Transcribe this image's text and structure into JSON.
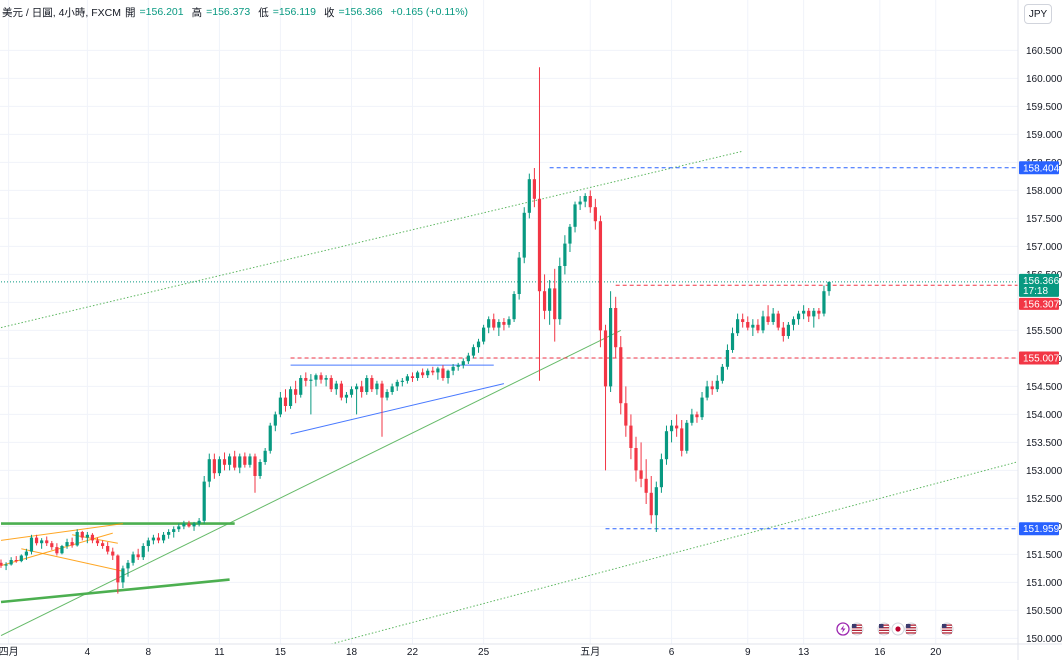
{
  "header": {
    "symbol": "美元 / 日圓, 4小時, FXCM",
    "open_label": "開",
    "open_value": "=156.201",
    "high_label": "高",
    "high_value": "=156.373",
    "low_label": "低",
    "low_value": "=156.119",
    "close_label": "收",
    "close_value": "=156.366",
    "change": "+0.165 (+0.11%)"
  },
  "currency_button": "JPY",
  "colors": {
    "up": "#089981",
    "down": "#f23645",
    "blue_tag": "#2962ff",
    "red_tag": "#f23645",
    "green_tag": "#089981",
    "channel": "#4caf50",
    "orange": "#ff9800",
    "blue_line": "#2962ff"
  },
  "price_tags": {
    "high_tag": "158.404",
    "current_price": "156.366",
    "countdown": "17:18",
    "prev_close": "156.307",
    "level_mid": "155.007",
    "low_tag": "151.959"
  },
  "event_icons": [
    "flash-icon",
    "us-flag-icon",
    "us-flag-icon",
    "jp-flag-icon",
    "us-flag-icon",
    "us-flag-icon"
  ],
  "chart_data": {
    "type": "candlestick",
    "ylim": [
      149.9,
      160.9
    ],
    "y_ticks": [
      "160.500",
      "160.000",
      "159.500",
      "159.000",
      "158.500",
      "158.000",
      "157.500",
      "157.000",
      "156.500",
      "156.000",
      "155.500",
      "155.000",
      "154.500",
      "154.000",
      "153.500",
      "153.000",
      "152.500",
      "152.000",
      "151.500",
      "151.000",
      "150.500",
      "150.000"
    ],
    "x_ticks": [
      {
        "label": "四月",
        "i": 1.5
      },
      {
        "label": "4",
        "i": 17
      },
      {
        "label": "8",
        "i": 29
      },
      {
        "label": "11",
        "i": 43
      },
      {
        "label": "15",
        "i": 55
      },
      {
        "label": "18",
        "i": 69
      },
      {
        "label": "22",
        "i": 81
      },
      {
        "label": "25",
        "i": 95
      },
      {
        "label": "五月",
        "i": 116
      },
      {
        "label": "6",
        "i": 132
      },
      {
        "label": "9",
        "i": 147
      },
      {
        "label": "13",
        "i": 158
      },
      {
        "label": "16",
        "i": 173
      },
      {
        "label": "20",
        "i": 184
      }
    ],
    "candles": [
      [
        151.35,
        151.41,
        151.26,
        151.3
      ],
      [
        151.3,
        151.36,
        151.22,
        151.32
      ],
      [
        151.32,
        151.45,
        151.3,
        151.4
      ],
      [
        151.4,
        151.47,
        151.35,
        151.38
      ],
      [
        151.38,
        151.5,
        151.36,
        151.48
      ],
      [
        151.48,
        151.6,
        151.4,
        151.55
      ],
      [
        151.55,
        151.85,
        151.5,
        151.8
      ],
      [
        151.8,
        151.85,
        151.66,
        151.7
      ],
      [
        151.7,
        151.79,
        151.6,
        151.75
      ],
      [
        151.75,
        151.82,
        151.65,
        151.7
      ],
      [
        151.7,
        151.74,
        151.58,
        151.63
      ],
      [
        151.63,
        151.7,
        151.48,
        151.52
      ],
      [
        151.52,
        151.67,
        151.5,
        151.65
      ],
      [
        151.65,
        151.78,
        151.6,
        151.72
      ],
      [
        151.72,
        151.8,
        151.62,
        151.66
      ],
      [
        151.66,
        151.95,
        151.64,
        151.9
      ],
      [
        151.9,
        151.92,
        151.75,
        151.8
      ],
      [
        151.8,
        151.9,
        151.7,
        151.85
      ],
      [
        151.85,
        151.88,
        151.7,
        151.75
      ],
      [
        151.75,
        151.8,
        151.65,
        151.7
      ],
      [
        151.7,
        151.75,
        151.6,
        151.65
      ],
      [
        151.65,
        151.72,
        151.5,
        151.55
      ],
      [
        151.55,
        151.62,
        151.4,
        151.48
      ],
      [
        151.48,
        151.5,
        150.8,
        151.0
      ],
      [
        151.0,
        151.3,
        150.9,
        151.25
      ],
      [
        151.25,
        151.4,
        151.1,
        151.35
      ],
      [
        151.35,
        151.55,
        151.3,
        151.5
      ],
      [
        151.5,
        151.6,
        151.4,
        151.45
      ],
      [
        151.45,
        151.7,
        151.4,
        151.65
      ],
      [
        151.65,
        151.8,
        151.55,
        151.75
      ],
      [
        151.75,
        151.85,
        151.68,
        151.8
      ],
      [
        151.8,
        151.88,
        151.7,
        151.75
      ],
      [
        151.75,
        151.9,
        151.7,
        151.85
      ],
      [
        151.85,
        151.95,
        151.78,
        151.9
      ],
      [
        151.9,
        152.0,
        151.8,
        151.95
      ],
      [
        151.95,
        152.05,
        151.9,
        152.0
      ],
      [
        152.0,
        152.1,
        151.95,
        152.05
      ],
      [
        152.05,
        152.1,
        151.98,
        152.0
      ],
      [
        152.0,
        152.08,
        151.92,
        152.05
      ],
      [
        152.05,
        152.15,
        152.0,
        152.1
      ],
      [
        152.1,
        152.9,
        152.05,
        152.8
      ],
      [
        152.8,
        153.3,
        152.7,
        153.2
      ],
      [
        153.2,
        153.3,
        152.85,
        152.95
      ],
      [
        152.95,
        153.25,
        152.9,
        153.2
      ],
      [
        153.2,
        153.32,
        153.0,
        153.1
      ],
      [
        153.1,
        153.3,
        153.0,
        153.25
      ],
      [
        153.25,
        153.35,
        153.0,
        153.05
      ],
      [
        153.05,
        153.3,
        152.95,
        153.25
      ],
      [
        153.25,
        153.32,
        153.05,
        153.1
      ],
      [
        153.1,
        153.3,
        153.05,
        153.25
      ],
      [
        153.25,
        153.3,
        152.6,
        152.9
      ],
      [
        152.9,
        153.2,
        152.85,
        153.15
      ],
      [
        153.15,
        153.4,
        153.1,
        153.35
      ],
      [
        153.35,
        153.85,
        153.3,
        153.8
      ],
      [
        153.8,
        154.05,
        153.7,
        154.0
      ],
      [
        154.0,
        154.4,
        153.95,
        154.3
      ],
      [
        154.3,
        154.45,
        154.05,
        154.15
      ],
      [
        154.15,
        154.5,
        154.1,
        154.45
      ],
      [
        154.45,
        154.6,
        154.2,
        154.35
      ],
      [
        154.35,
        154.7,
        154.3,
        154.65
      ],
      [
        154.65,
        154.75,
        154.5,
        154.6
      ],
      [
        154.6,
        154.72,
        154.0,
        154.62
      ],
      [
        154.62,
        154.73,
        154.5,
        154.7
      ],
      [
        154.7,
        154.75,
        154.55,
        154.62
      ],
      [
        154.62,
        154.7,
        154.5,
        154.65
      ],
      [
        154.65,
        154.7,
        154.4,
        154.45
      ],
      [
        154.45,
        154.6,
        154.35,
        154.55
      ],
      [
        154.55,
        154.6,
        154.25,
        154.3
      ],
      [
        154.3,
        154.4,
        154.2,
        154.35
      ],
      [
        154.35,
        154.5,
        154.3,
        154.45
      ],
      [
        154.45,
        154.55,
        154.0,
        154.5
      ],
      [
        154.5,
        154.6,
        154.3,
        154.4
      ],
      [
        154.4,
        154.7,
        154.35,
        154.65
      ],
      [
        154.65,
        154.7,
        154.4,
        154.45
      ],
      [
        154.45,
        154.6,
        154.35,
        154.55
      ],
      [
        154.55,
        154.6,
        153.6,
        154.3
      ],
      [
        154.3,
        154.45,
        154.25,
        154.4
      ],
      [
        154.4,
        154.55,
        154.35,
        154.5
      ],
      [
        154.5,
        154.62,
        154.42,
        154.58
      ],
      [
        154.58,
        154.65,
        154.5,
        154.6
      ],
      [
        154.6,
        154.72,
        154.55,
        154.68
      ],
      [
        154.68,
        154.75,
        154.58,
        154.65
      ],
      [
        154.65,
        154.78,
        154.6,
        154.75
      ],
      [
        154.75,
        154.82,
        154.65,
        154.7
      ],
      [
        154.7,
        154.82,
        154.65,
        154.78
      ],
      [
        154.78,
        154.85,
        154.7,
        154.75
      ],
      [
        154.75,
        154.85,
        154.62,
        154.82
      ],
      [
        154.82,
        154.88,
        154.6,
        154.65
      ],
      [
        154.65,
        154.8,
        154.55,
        154.78
      ],
      [
        154.78,
        154.9,
        154.7,
        154.85
      ],
      [
        154.85,
        154.92,
        154.78,
        154.88
      ],
      [
        154.88,
        155.0,
        154.82,
        154.95
      ],
      [
        154.95,
        155.1,
        154.9,
        155.05
      ],
      [
        155.05,
        155.25,
        155.0,
        155.2
      ],
      [
        155.2,
        155.35,
        155.1,
        155.3
      ],
      [
        155.3,
        155.6,
        155.25,
        155.55
      ],
      [
        155.55,
        155.75,
        155.45,
        155.7
      ],
      [
        155.7,
        155.8,
        155.5,
        155.55
      ],
      [
        155.55,
        155.7,
        155.4,
        155.65
      ],
      [
        155.65,
        155.72,
        155.5,
        155.6
      ],
      [
        155.6,
        155.75,
        155.55,
        155.7
      ],
      [
        155.7,
        156.2,
        155.65,
        156.15
      ],
      [
        156.15,
        156.9,
        156.05,
        156.8
      ],
      [
        156.8,
        157.7,
        156.7,
        157.6
      ],
      [
        157.6,
        158.3,
        157.5,
        158.2
      ],
      [
        158.2,
        158.4,
        157.7,
        157.85
      ],
      [
        157.85,
        160.2,
        154.6,
        156.2
      ],
      [
        156.2,
        156.5,
        155.7,
        155.85
      ],
      [
        155.85,
        156.4,
        155.6,
        156.25
      ],
      [
        156.25,
        156.6,
        155.3,
        155.7
      ],
      [
        155.7,
        156.8,
        155.6,
        156.65
      ],
      [
        156.65,
        157.2,
        156.5,
        157.05
      ],
      [
        157.05,
        157.4,
        156.9,
        157.35
      ],
      [
        157.35,
        157.8,
        157.25,
        157.75
      ],
      [
        157.75,
        157.9,
        157.65,
        157.8
      ],
      [
        157.8,
        157.95,
        157.7,
        157.9
      ],
      [
        157.9,
        158.0,
        157.6,
        157.7
      ],
      [
        157.7,
        157.85,
        157.3,
        157.45
      ],
      [
        157.45,
        157.55,
        155.2,
        155.5
      ],
      [
        155.5,
        155.6,
        153.0,
        154.5
      ],
      [
        154.5,
        156.2,
        154.4,
        155.9
      ],
      [
        155.9,
        156.1,
        155.0,
        155.2
      ],
      [
        155.2,
        155.4,
        154.0,
        154.2
      ],
      [
        154.2,
        154.5,
        153.6,
        153.8
      ],
      [
        153.8,
        154.0,
        153.2,
        153.4
      ],
      [
        153.4,
        153.6,
        152.8,
        153.0
      ],
      [
        153.0,
        153.5,
        152.7,
        152.85
      ],
      [
        152.85,
        153.2,
        152.4,
        152.6
      ],
      [
        152.6,
        152.9,
        152.05,
        152.2
      ],
      [
        152.2,
        152.8,
        151.9,
        152.7
      ],
      [
        152.7,
        153.3,
        152.6,
        153.2
      ],
      [
        153.2,
        153.8,
        153.1,
        153.7
      ],
      [
        153.7,
        153.9,
        153.5,
        153.8
      ],
      [
        153.8,
        154.0,
        153.6,
        153.75
      ],
      [
        153.75,
        153.9,
        153.25,
        153.35
      ],
      [
        153.35,
        153.9,
        153.3,
        153.85
      ],
      [
        153.85,
        154.1,
        153.8,
        154.0
      ],
      [
        154.0,
        154.05,
        153.85,
        153.95
      ],
      [
        153.95,
        154.4,
        153.9,
        154.3
      ],
      [
        154.3,
        154.6,
        154.25,
        154.5
      ],
      [
        154.5,
        154.6,
        154.35,
        154.45
      ],
      [
        154.45,
        154.7,
        154.4,
        154.6
      ],
      [
        154.6,
        154.9,
        154.55,
        154.85
      ],
      [
        154.85,
        155.25,
        154.8,
        155.15
      ],
      [
        155.15,
        155.55,
        155.1,
        155.45
      ],
      [
        155.45,
        155.8,
        155.4,
        155.7
      ],
      [
        155.7,
        155.8,
        155.55,
        155.65
      ],
      [
        155.65,
        155.75,
        155.5,
        155.55
      ],
      [
        155.55,
        155.7,
        155.4,
        155.6
      ],
      [
        155.6,
        155.7,
        155.45,
        155.5
      ],
      [
        155.5,
        155.85,
        155.45,
        155.75
      ],
      [
        155.75,
        155.95,
        155.6,
        155.65
      ],
      [
        155.65,
        155.9,
        155.6,
        155.8
      ],
      [
        155.8,
        155.85,
        155.5,
        155.55
      ],
      [
        155.55,
        155.65,
        155.3,
        155.4
      ],
      [
        155.4,
        155.65,
        155.35,
        155.6
      ],
      [
        155.6,
        155.75,
        155.5,
        155.7
      ],
      [
        155.7,
        155.85,
        155.6,
        155.8
      ],
      [
        155.8,
        155.95,
        155.7,
        155.85
      ],
      [
        155.85,
        155.9,
        155.65,
        155.75
      ],
      [
        155.75,
        155.9,
        155.55,
        155.85
      ],
      [
        155.85,
        155.9,
        155.7,
        155.8
      ],
      [
        155.8,
        156.3,
        155.75,
        156.2
      ],
      [
        156.201,
        156.373,
        156.119,
        156.366
      ]
    ],
    "horizontal_levels": [
      {
        "price": 158.404,
        "style": "blue-dashed",
        "from_i": 108
      },
      {
        "price": 156.307,
        "style": "red-dashed",
        "from_i": 121
      },
      {
        "price": 155.007,
        "style": "red-dashed",
        "from_i": 57
      },
      {
        "price": 151.959,
        "style": "blue-dashed",
        "from_i": 119
      },
      {
        "price": 156.366,
        "style": "green-dotted",
        "from_i": 0
      }
    ],
    "trendlines": [
      {
        "i1": 0,
        "p1": 155.55,
        "i2": 146,
        "p2": 158.7,
        "style": "green-dotted"
      },
      {
        "i1": 0,
        "p1": 150.05,
        "i2": 122,
        "p2": 155.5,
        "style": "green-thin"
      },
      {
        "i1": 65,
        "p1": 149.9,
        "i2": 200,
        "p2": 153.15,
        "style": "green-dotted"
      },
      {
        "i1": 0,
        "p1": 150.65,
        "i2": 45,
        "p2": 151.05,
        "style": "green-thick"
      },
      {
        "i1": 0,
        "p1": 152.05,
        "i2": 46,
        "p2": 152.05,
        "style": "green-thick"
      },
      {
        "i1": 57,
        "p1": 154.88,
        "i2": 97,
        "p2": 154.88,
        "style": "blue-thin"
      },
      {
        "i1": 57,
        "p1": 153.65,
        "i2": 99,
        "p2": 154.55,
        "style": "blue-thin"
      },
      {
        "i1": 0,
        "p1": 151.75,
        "i2": 24,
        "p2": 152.05,
        "style": "orange"
      },
      {
        "i1": 0,
        "p1": 151.3,
        "i2": 22,
        "p2": 151.88,
        "style": "orange"
      },
      {
        "i1": 4,
        "p1": 151.6,
        "i2": 24,
        "p2": 151.2,
        "style": "orange"
      },
      {
        "i1": 14,
        "p1": 151.85,
        "i2": 23,
        "p2": 151.7,
        "style": "orange"
      }
    ]
  }
}
